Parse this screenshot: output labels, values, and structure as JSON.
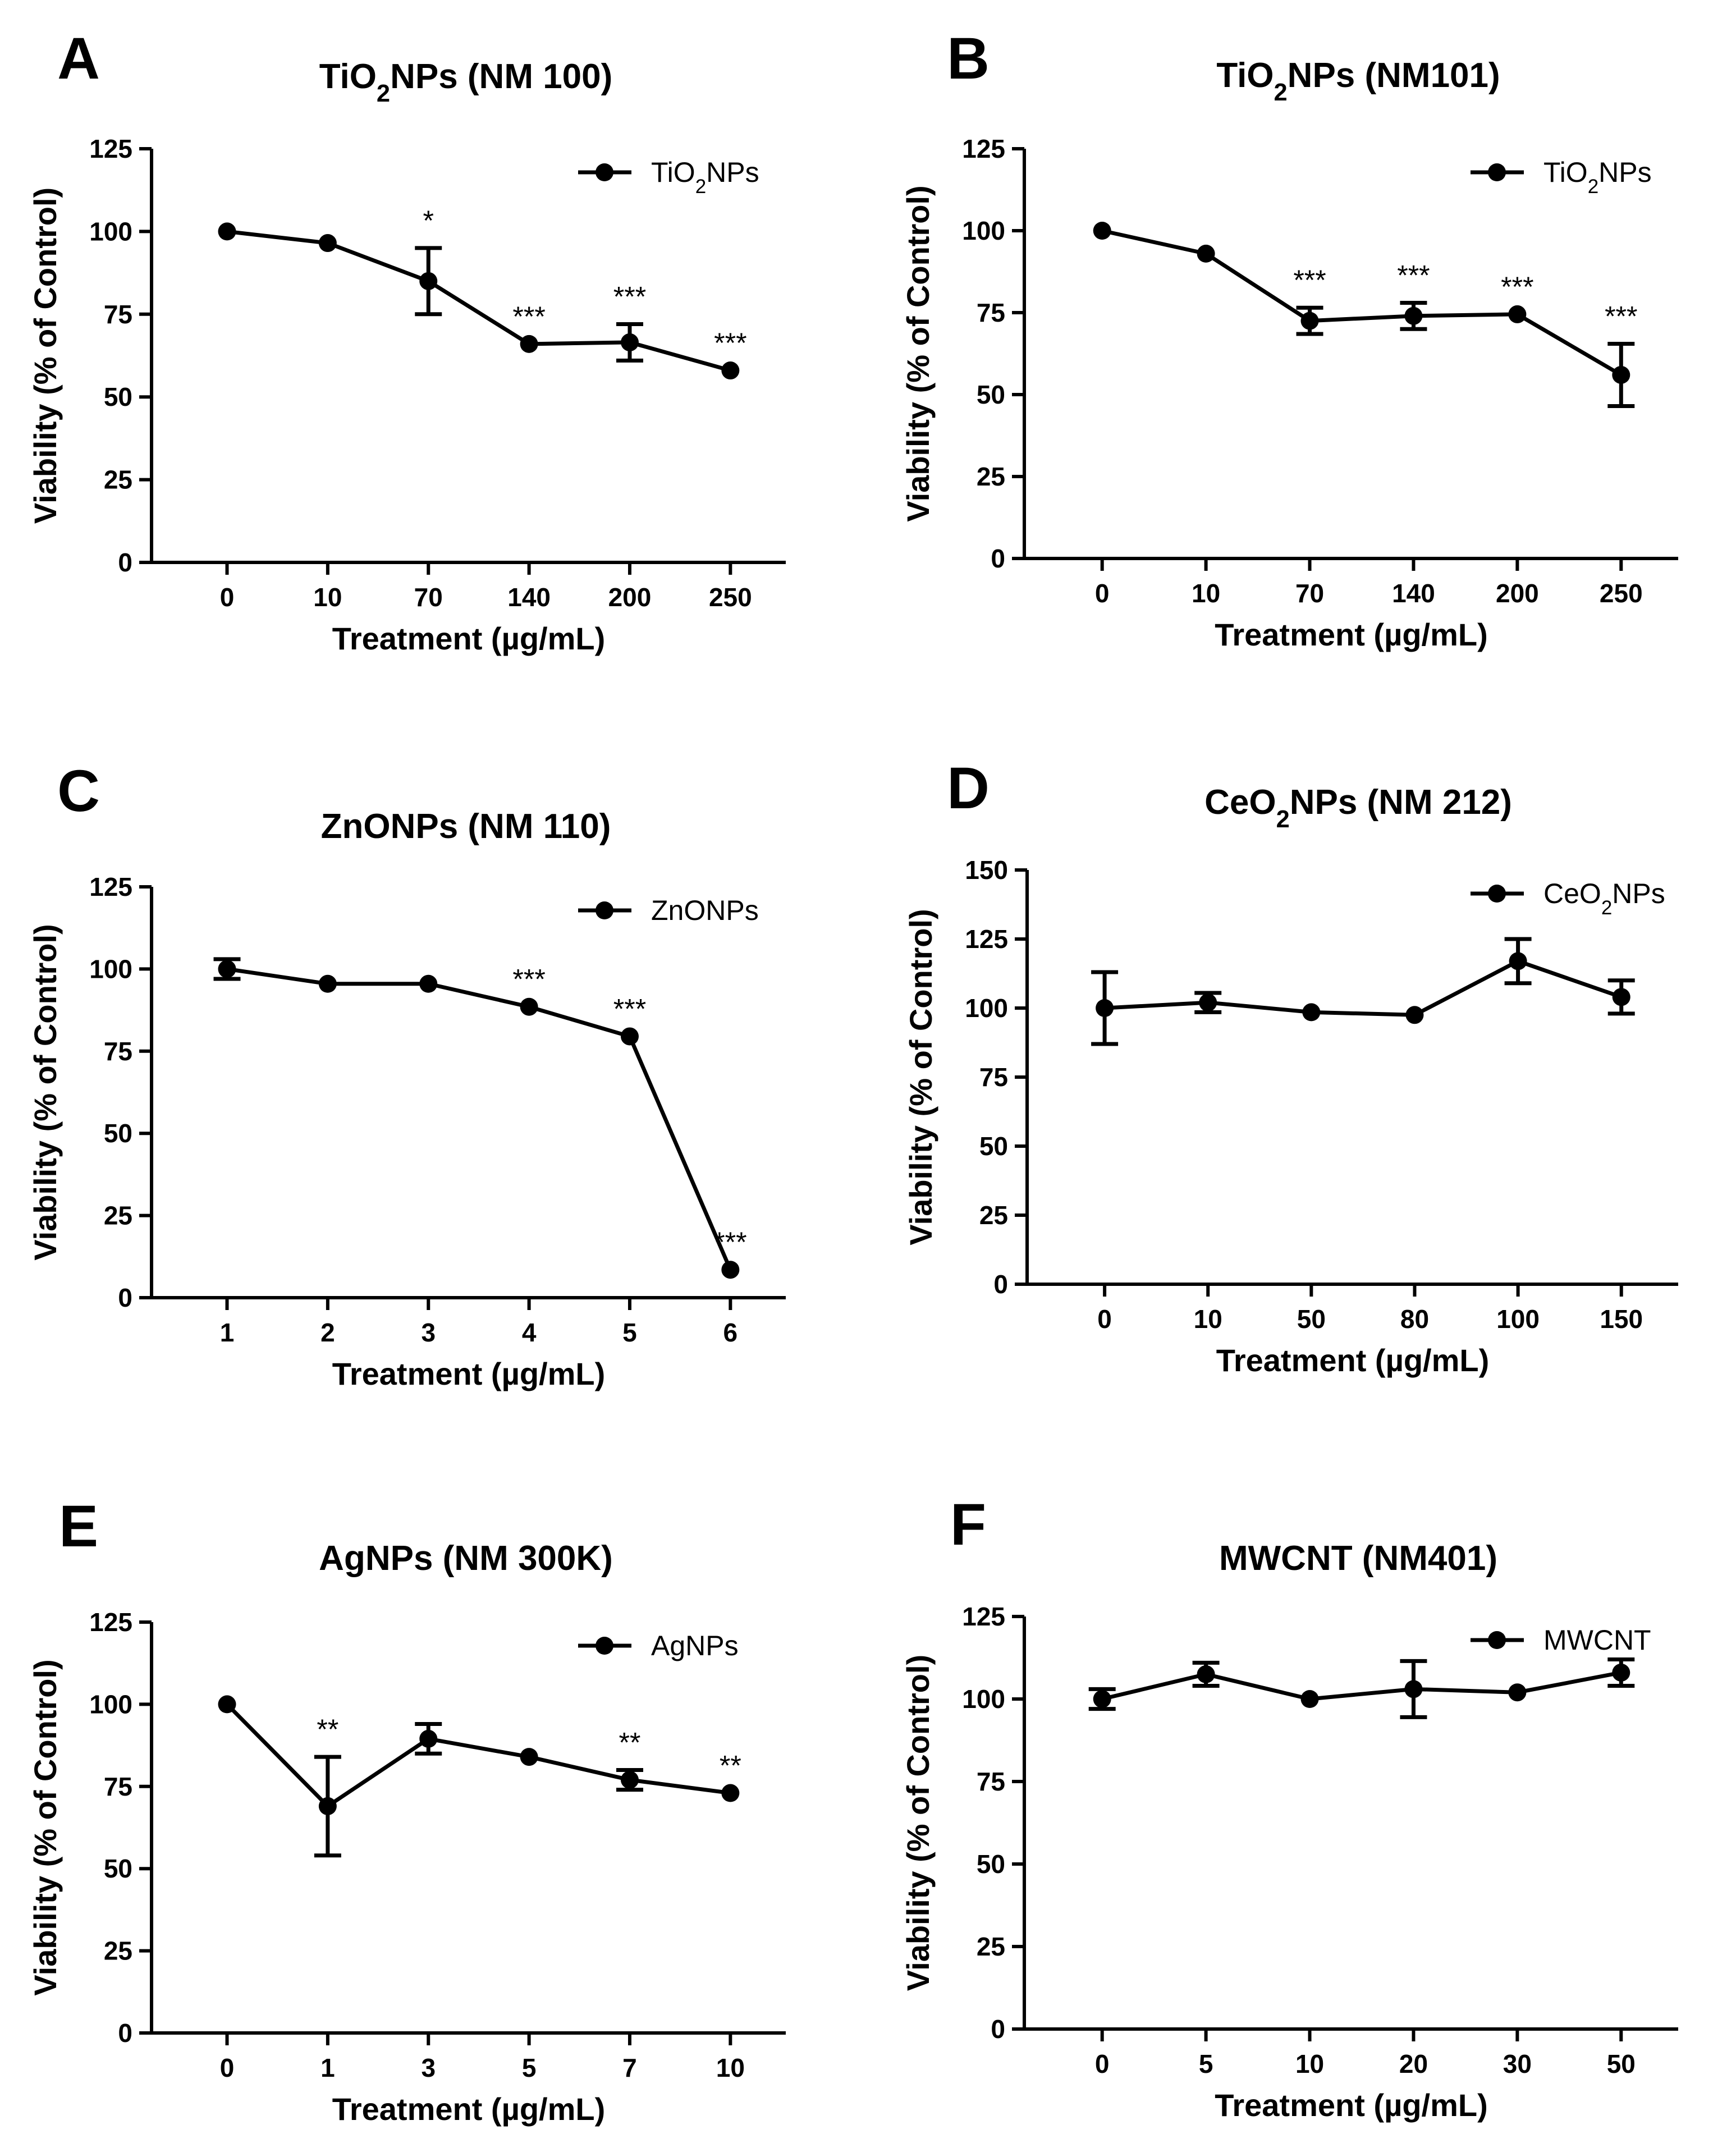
{
  "colors": {
    "ink": "#000000",
    "background": "#ffffff"
  },
  "chart_data": [
    {
      "type": "line",
      "panel": "A",
      "title": "TiO2NPs (NM 100)",
      "title_parts": {
        "pre": "TiO",
        "sub": "2",
        "post": "NPs (NM 100)"
      },
      "xlabel": "Treatment (µg/mL)",
      "ylabel": "Viability (% of Control)",
      "ylim": [
        0,
        125
      ],
      "yticks": [
        0,
        25,
        50,
        75,
        100,
        125
      ],
      "categories": [
        "0",
        "10",
        "70",
        "140",
        "200",
        "250"
      ],
      "legend": {
        "placement": "top-right",
        "parts": {
          "pre": "TiO",
          "sub": "2",
          "post": "NPs"
        }
      },
      "series": [
        {
          "name": "TiO2NPs",
          "values": [
            100,
            96.5,
            85,
            66,
            66.5,
            58
          ],
          "errors": [
            0,
            0,
            10,
            0,
            5.5,
            0
          ]
        }
      ],
      "significance": [
        "",
        "",
        "*",
        "***",
        "***",
        "***"
      ],
      "grid": false
    },
    {
      "type": "line",
      "panel": "B",
      "title": "TiO2NPs (NM101)",
      "title_parts": {
        "pre": "TiO",
        "sub": "2",
        "post": "NPs (NM101)"
      },
      "xlabel": "Treatment (µg/mL)",
      "ylabel": "Viability (% of Control)",
      "ylim": [
        0,
        125
      ],
      "yticks": [
        0,
        25,
        50,
        75,
        100,
        125
      ],
      "categories": [
        "0",
        "10",
        "70",
        "140",
        "200",
        "250"
      ],
      "legend": {
        "placement": "top-right",
        "parts": {
          "pre": "TiO",
          "sub": "2",
          "post": "NPs"
        }
      },
      "series": [
        {
          "name": "TiO2NPs",
          "values": [
            100,
            93,
            72.5,
            74,
            74.5,
            56
          ],
          "errors": [
            0,
            0,
            4,
            4,
            0,
            9.5
          ]
        }
      ],
      "significance": [
        "",
        "",
        "***",
        "***",
        "***",
        "***"
      ],
      "grid": false
    },
    {
      "type": "line",
      "panel": "C",
      "title": "ZnONPs (NM 110)",
      "title_parts": {
        "pre": "ZnONPs (NM 110)",
        "sub": "",
        "post": ""
      },
      "xlabel": "Treatment (µg/mL)",
      "ylabel": "Viability (% of Control)",
      "ylim": [
        0,
        125
      ],
      "yticks": [
        0,
        25,
        50,
        75,
        100,
        125
      ],
      "categories": [
        "1",
        "2",
        "3",
        "4",
        "5",
        "6"
      ],
      "legend": {
        "placement": "top-right",
        "parts": {
          "pre": "ZnONPs",
          "sub": "",
          "post": ""
        }
      },
      "series": [
        {
          "name": "ZnONPs",
          "values": [
            100,
            95.5,
            95.5,
            88.5,
            79.5,
            8.5
          ],
          "errors": [
            3,
            0,
            0,
            0,
            0,
            0
          ]
        }
      ],
      "significance": [
        "",
        "",
        "",
        "***",
        "***",
        "***"
      ],
      "grid": false
    },
    {
      "type": "line",
      "panel": "D",
      "title": "CeO2NPs (NM 212)",
      "title_parts": {
        "pre": "CeO",
        "sub": "2",
        "post": "NPs (NM 212)"
      },
      "xlabel": "Treatment (µg/mL)",
      "ylabel": "Viability (% of Control)",
      "ylim": [
        0,
        150
      ],
      "yticks": [
        0,
        25,
        50,
        75,
        100,
        125,
        150
      ],
      "categories": [
        "0",
        "10",
        "50",
        "80",
        "100",
        "150"
      ],
      "legend": {
        "placement": "top-right",
        "parts": {
          "pre": "CeO",
          "sub": "2",
          "post": "NPs"
        }
      },
      "series": [
        {
          "name": "CeO2NPs",
          "values": [
            100,
            102,
            98.5,
            97.5,
            117,
            104
          ],
          "errors": [
            13,
            3.5,
            0,
            0,
            8,
            6
          ]
        }
      ],
      "significance": [
        "",
        "",
        "",
        "",
        "",
        ""
      ],
      "grid": false
    },
    {
      "type": "line",
      "panel": "E",
      "title": "AgNPs (NM 300K)",
      "title_parts": {
        "pre": "AgNPs (NM 300K)",
        "sub": "",
        "post": ""
      },
      "xlabel": "Treatment (µg/mL)",
      "ylabel": "Viability (% of Control)",
      "ylim": [
        0,
        125
      ],
      "yticks": [
        0,
        25,
        50,
        75,
        100,
        125
      ],
      "categories": [
        "0",
        "1",
        "3",
        "5",
        "7",
        "10"
      ],
      "legend": {
        "placement": "top-right",
        "parts": {
          "pre": "AgNPs",
          "sub": "",
          "post": ""
        }
      },
      "series": [
        {
          "name": "AgNPs",
          "values": [
            100,
            69,
            89.5,
            84,
            77,
            73
          ],
          "errors": [
            0,
            15,
            4.5,
            0,
            3,
            0
          ]
        }
      ],
      "significance": [
        "",
        "**",
        "",
        "",
        "**",
        "**"
      ],
      "grid": false
    },
    {
      "type": "line",
      "panel": "F",
      "title": "MWCNT (NM401)",
      "title_parts": {
        "pre": "MWCNT (NM401)",
        "sub": "",
        "post": ""
      },
      "xlabel": "Treatment (µg/mL)",
      "ylabel": "Viability (% of Control)",
      "ylim": [
        0,
        125
      ],
      "yticks": [
        0,
        25,
        50,
        75,
        100,
        125
      ],
      "categories": [
        "0",
        "5",
        "10",
        "20",
        "30",
        "50"
      ],
      "legend": {
        "placement": "top-right",
        "parts": {
          "pre": "MWCNT",
          "sub": "",
          "post": ""
        }
      },
      "series": [
        {
          "name": "MWCNT",
          "values": [
            100,
            107.5,
            100,
            103,
            102,
            108
          ],
          "errors": [
            3,
            3.5,
            0,
            8.5,
            0,
            4
          ]
        }
      ],
      "significance": [
        "",
        "",
        "",
        "",
        "",
        ""
      ],
      "grid": false
    }
  ]
}
